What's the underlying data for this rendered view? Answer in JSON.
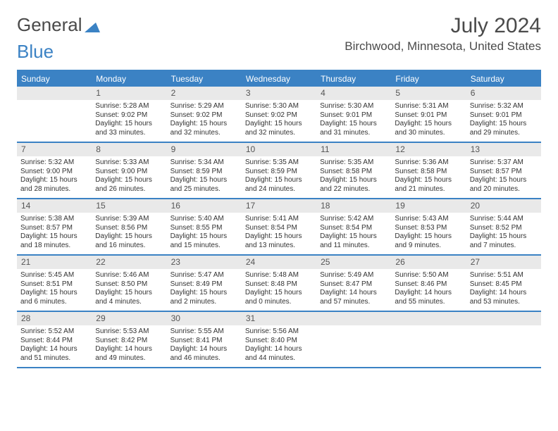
{
  "logo": {
    "text1": "General",
    "text2": "Blue"
  },
  "title": "July 2024",
  "location": "Birchwood, Minnesota, United States",
  "weekdays": [
    "Sunday",
    "Monday",
    "Tuesday",
    "Wednesday",
    "Thursday",
    "Friday",
    "Saturday"
  ],
  "colors": {
    "accent": "#3b82c4",
    "header_bg": "#3b82c4",
    "header_text": "#ffffff",
    "daynum_bg": "#e9e9e9",
    "body_text": "#333333"
  },
  "layout": {
    "start_offset": 1,
    "days_in_month": 31
  },
  "days": [
    {
      "n": 1,
      "sunrise": "5:28 AM",
      "sunset": "9:02 PM",
      "daylight": "15 hours and 33 minutes."
    },
    {
      "n": 2,
      "sunrise": "5:29 AM",
      "sunset": "9:02 PM",
      "daylight": "15 hours and 32 minutes."
    },
    {
      "n": 3,
      "sunrise": "5:30 AM",
      "sunset": "9:02 PM",
      "daylight": "15 hours and 32 minutes."
    },
    {
      "n": 4,
      "sunrise": "5:30 AM",
      "sunset": "9:01 PM",
      "daylight": "15 hours and 31 minutes."
    },
    {
      "n": 5,
      "sunrise": "5:31 AM",
      "sunset": "9:01 PM",
      "daylight": "15 hours and 30 minutes."
    },
    {
      "n": 6,
      "sunrise": "5:32 AM",
      "sunset": "9:01 PM",
      "daylight": "15 hours and 29 minutes."
    },
    {
      "n": 7,
      "sunrise": "5:32 AM",
      "sunset": "9:00 PM",
      "daylight": "15 hours and 28 minutes."
    },
    {
      "n": 8,
      "sunrise": "5:33 AM",
      "sunset": "9:00 PM",
      "daylight": "15 hours and 26 minutes."
    },
    {
      "n": 9,
      "sunrise": "5:34 AM",
      "sunset": "8:59 PM",
      "daylight": "15 hours and 25 minutes."
    },
    {
      "n": 10,
      "sunrise": "5:35 AM",
      "sunset": "8:59 PM",
      "daylight": "15 hours and 24 minutes."
    },
    {
      "n": 11,
      "sunrise": "5:35 AM",
      "sunset": "8:58 PM",
      "daylight": "15 hours and 22 minutes."
    },
    {
      "n": 12,
      "sunrise": "5:36 AM",
      "sunset": "8:58 PM",
      "daylight": "15 hours and 21 minutes."
    },
    {
      "n": 13,
      "sunrise": "5:37 AM",
      "sunset": "8:57 PM",
      "daylight": "15 hours and 20 minutes."
    },
    {
      "n": 14,
      "sunrise": "5:38 AM",
      "sunset": "8:57 PM",
      "daylight": "15 hours and 18 minutes."
    },
    {
      "n": 15,
      "sunrise": "5:39 AM",
      "sunset": "8:56 PM",
      "daylight": "15 hours and 16 minutes."
    },
    {
      "n": 16,
      "sunrise": "5:40 AM",
      "sunset": "8:55 PM",
      "daylight": "15 hours and 15 minutes."
    },
    {
      "n": 17,
      "sunrise": "5:41 AM",
      "sunset": "8:54 PM",
      "daylight": "15 hours and 13 minutes."
    },
    {
      "n": 18,
      "sunrise": "5:42 AM",
      "sunset": "8:54 PM",
      "daylight": "15 hours and 11 minutes."
    },
    {
      "n": 19,
      "sunrise": "5:43 AM",
      "sunset": "8:53 PM",
      "daylight": "15 hours and 9 minutes."
    },
    {
      "n": 20,
      "sunrise": "5:44 AM",
      "sunset": "8:52 PM",
      "daylight": "15 hours and 7 minutes."
    },
    {
      "n": 21,
      "sunrise": "5:45 AM",
      "sunset": "8:51 PM",
      "daylight": "15 hours and 6 minutes."
    },
    {
      "n": 22,
      "sunrise": "5:46 AM",
      "sunset": "8:50 PM",
      "daylight": "15 hours and 4 minutes."
    },
    {
      "n": 23,
      "sunrise": "5:47 AM",
      "sunset": "8:49 PM",
      "daylight": "15 hours and 2 minutes."
    },
    {
      "n": 24,
      "sunrise": "5:48 AM",
      "sunset": "8:48 PM",
      "daylight": "15 hours and 0 minutes."
    },
    {
      "n": 25,
      "sunrise": "5:49 AM",
      "sunset": "8:47 PM",
      "daylight": "14 hours and 57 minutes."
    },
    {
      "n": 26,
      "sunrise": "5:50 AM",
      "sunset": "8:46 PM",
      "daylight": "14 hours and 55 minutes."
    },
    {
      "n": 27,
      "sunrise": "5:51 AM",
      "sunset": "8:45 PM",
      "daylight": "14 hours and 53 minutes."
    },
    {
      "n": 28,
      "sunrise": "5:52 AM",
      "sunset": "8:44 PM",
      "daylight": "14 hours and 51 minutes."
    },
    {
      "n": 29,
      "sunrise": "5:53 AM",
      "sunset": "8:42 PM",
      "daylight": "14 hours and 49 minutes."
    },
    {
      "n": 30,
      "sunrise": "5:55 AM",
      "sunset": "8:41 PM",
      "daylight": "14 hours and 46 minutes."
    },
    {
      "n": 31,
      "sunrise": "5:56 AM",
      "sunset": "8:40 PM",
      "daylight": "14 hours and 44 minutes."
    }
  ],
  "labels": {
    "sunrise": "Sunrise:",
    "sunset": "Sunset:",
    "daylight": "Daylight:"
  }
}
